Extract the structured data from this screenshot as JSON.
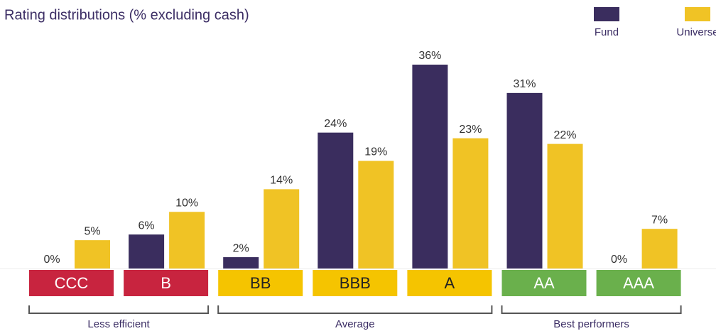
{
  "chart_data": {
    "type": "bar",
    "title": "Rating distributions (% excluding cash)",
    "categories": [
      "CCC",
      "B",
      "BB",
      "BBB",
      "A",
      "AA",
      "AAA"
    ],
    "category_colors": [
      "#c8243f",
      "#c8243f",
      "#f5c400",
      "#f5c400",
      "#f5c400",
      "#6ab04c",
      "#6ab04c"
    ],
    "series": [
      {
        "name": "Fund",
        "color": "#3a2d5e",
        "values": [
          0,
          6,
          2,
          24,
          36,
          31,
          0
        ],
        "value_labels": [
          "0%",
          "6%",
          "2%",
          "24%",
          "36%",
          "31%",
          "0%"
        ]
      },
      {
        "name": "Universe",
        "color": "#f0c325",
        "values": [
          5,
          10,
          14,
          19,
          23,
          22,
          7
        ],
        "value_labels": [
          "5%",
          "10%",
          "14%",
          "19%",
          "23%",
          "22%",
          "7%"
        ]
      }
    ],
    "groups": [
      {
        "label": "Less efficient",
        "categories": [
          "CCC",
          "B"
        ]
      },
      {
        "label": "Average",
        "categories": [
          "BB",
          "BBB",
          "A"
        ]
      },
      {
        "label": "Best performers",
        "categories": [
          "AA",
          "AAA"
        ]
      }
    ],
    "legend": "top-right"
  }
}
